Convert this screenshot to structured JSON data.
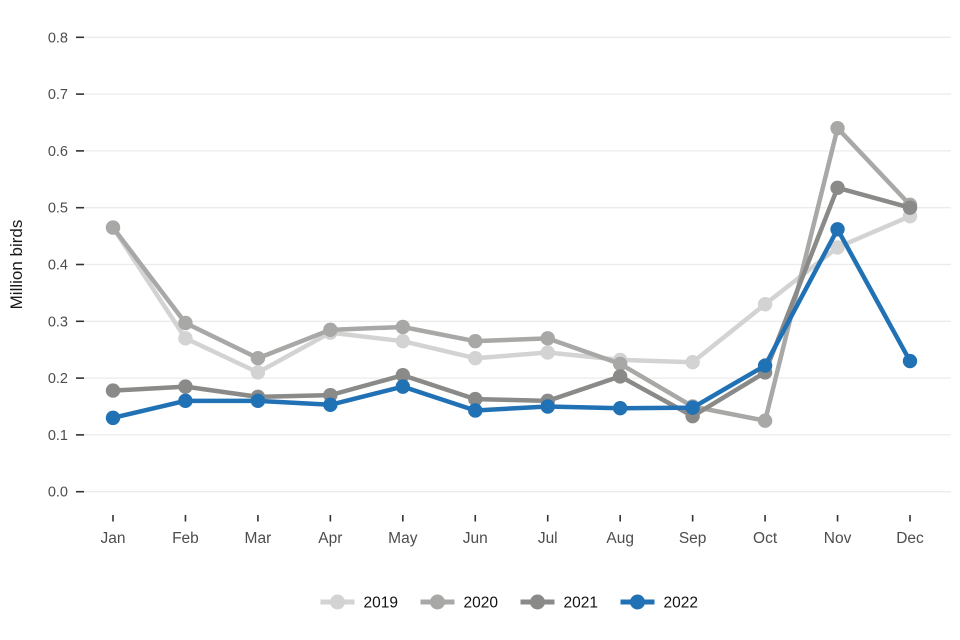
{
  "chart_data": {
    "type": "line",
    "title": "",
    "xlabel": "",
    "ylabel": "Million birds",
    "categories": [
      "Jan",
      "Feb",
      "Mar",
      "Apr",
      "May",
      "Jun",
      "Jul",
      "Aug",
      "Sep",
      "Oct",
      "Nov",
      "Dec"
    ],
    "ylim": [
      0.0,
      0.8
    ],
    "ytick_labels": [
      "0.0",
      "0.1",
      "0.2",
      "0.3",
      "0.4",
      "0.5",
      "0.6",
      "0.7",
      "0.8"
    ],
    "grid": "horizontal-only",
    "legend_position": "bottom-center",
    "series": [
      {
        "name": "2019",
        "color": "#d3d3d3",
        "values": [
          0.465,
          0.27,
          0.21,
          0.28,
          0.265,
          0.235,
          0.245,
          0.232,
          0.228,
          0.33,
          0.43,
          0.485
        ]
      },
      {
        "name": "2020",
        "color": "#a8a8a6",
        "values": [
          0.465,
          0.297,
          0.235,
          0.285,
          0.29,
          0.265,
          0.27,
          0.225,
          0.15,
          0.125,
          0.64,
          0.505
        ]
      },
      {
        "name": "2021",
        "color": "#8a8a88",
        "values": [
          0.178,
          0.185,
          0.167,
          0.17,
          0.205,
          0.163,
          0.16,
          0.203,
          0.133,
          0.21,
          0.535,
          0.5
        ]
      },
      {
        "name": "2022",
        "color": "#2171b5",
        "values": [
          0.13,
          0.16,
          0.16,
          0.153,
          0.185,
          0.143,
          0.15,
          0.147,
          0.148,
          0.222,
          0.462,
          0.23
        ]
      }
    ],
    "style": {
      "background": "#ffffff",
      "gridline_color": "#ebebeb",
      "tick_mark_color": "#333333",
      "axis_text_color": "#4d4d4d",
      "ylabel_text_color": "#1a1a1a",
      "legend_text_color": "#111111"
    }
  }
}
